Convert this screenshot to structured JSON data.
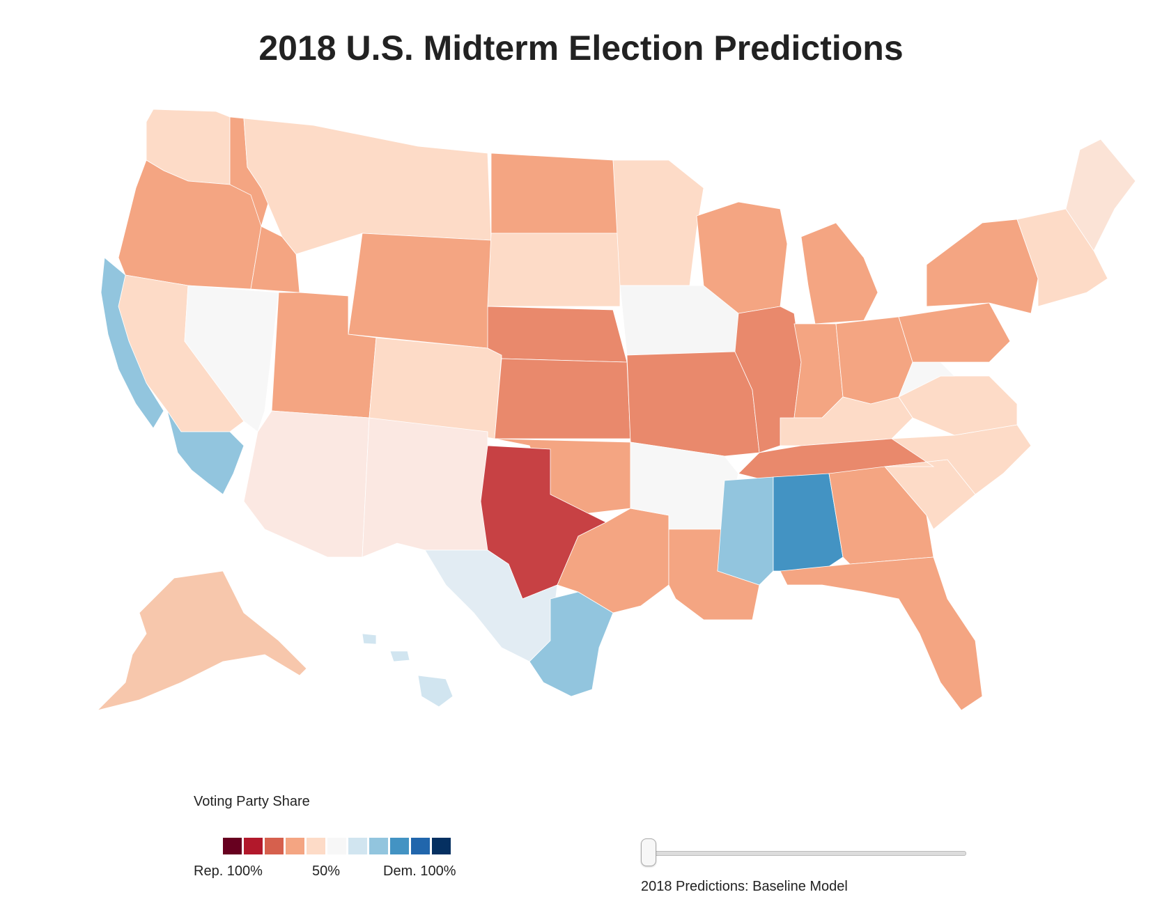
{
  "title": "2018 U.S. Midterm Election Predictions",
  "legend": {
    "title": "Voting Party Share",
    "colors": [
      "#67001f",
      "#b2182b",
      "#d6604d",
      "#f4a582",
      "#fddbc7",
      "#f7f7f7",
      "#d1e5f0",
      "#92c5de",
      "#4393c3",
      "#2166ac",
      "#053061"
    ],
    "tick_rep": "Rep. 100%",
    "tick_mid": "50%",
    "tick_dem": "Dem. 100%"
  },
  "slider": {
    "label": "2018 Predictions: Baseline Model",
    "value": 0
  },
  "map": {
    "regions": [
      {
        "name": "washington",
        "fill": "#fddbc7"
      },
      {
        "name": "oregon",
        "fill": "#f4a582"
      },
      {
        "name": "california-north",
        "fill": "#fddbc7"
      },
      {
        "name": "california-coast",
        "fill": "#92c5de"
      },
      {
        "name": "california-south",
        "fill": "#92c5de"
      },
      {
        "name": "nevada",
        "fill": "#f7f7f7"
      },
      {
        "name": "idaho",
        "fill": "#f4a582"
      },
      {
        "name": "montana",
        "fill": "#fddbc7"
      },
      {
        "name": "wyoming",
        "fill": "#f4a582"
      },
      {
        "name": "utah",
        "fill": "#f4a582"
      },
      {
        "name": "arizona",
        "fill": "#fbe8e2"
      },
      {
        "name": "colorado",
        "fill": "#fddbc7"
      },
      {
        "name": "new-mexico",
        "fill": "#fbe8e2"
      },
      {
        "name": "north-dakota",
        "fill": "#f4a582"
      },
      {
        "name": "south-dakota",
        "fill": "#fddbc7"
      },
      {
        "name": "nebraska",
        "fill": "#e9896c"
      },
      {
        "name": "kansas",
        "fill": "#e9896c"
      },
      {
        "name": "oklahoma",
        "fill": "#f4a582"
      },
      {
        "name": "texas-panhandle",
        "fill": "#c74144"
      },
      {
        "name": "texas-south",
        "fill": "#e2ecf3"
      },
      {
        "name": "texas-border",
        "fill": "#92c5de"
      },
      {
        "name": "texas-east",
        "fill": "#f4a582"
      },
      {
        "name": "minnesota",
        "fill": "#fddbc7"
      },
      {
        "name": "iowa",
        "fill": "#f6f6f6"
      },
      {
        "name": "missouri",
        "fill": "#e9896c"
      },
      {
        "name": "arkansas",
        "fill": "#f7f7f7"
      },
      {
        "name": "louisiana",
        "fill": "#f4a582"
      },
      {
        "name": "wisconsin",
        "fill": "#f4a582"
      },
      {
        "name": "illinois",
        "fill": "#e9896c"
      },
      {
        "name": "michigan",
        "fill": "#f4a582"
      },
      {
        "name": "indiana",
        "fill": "#f4a582"
      },
      {
        "name": "ohio",
        "fill": "#f4a582"
      },
      {
        "name": "kentucky",
        "fill": "#fddbc7"
      },
      {
        "name": "tennessee",
        "fill": "#e9896c"
      },
      {
        "name": "mississippi",
        "fill": "#92c5de"
      },
      {
        "name": "alabama",
        "fill": "#4393c3"
      },
      {
        "name": "georgia",
        "fill": "#f4a582"
      },
      {
        "name": "florida",
        "fill": "#f4a582"
      },
      {
        "name": "south-carolina",
        "fill": "#fddbc7"
      },
      {
        "name": "north-carolina",
        "fill": "#fddbc7"
      },
      {
        "name": "virginia",
        "fill": "#fddbc7"
      },
      {
        "name": "west-virginia",
        "fill": "#f7f7f7"
      },
      {
        "name": "pennsylvania",
        "fill": "#f4a582"
      },
      {
        "name": "new-york",
        "fill": "#f4a582"
      },
      {
        "name": "new-england",
        "fill": "#fddbc7"
      },
      {
        "name": "maine",
        "fill": "#fbe3d6"
      },
      {
        "name": "alaska",
        "fill": "#f7c7ac"
      },
      {
        "name": "hawaii",
        "fill": "#d1e5f0"
      }
    ]
  }
}
